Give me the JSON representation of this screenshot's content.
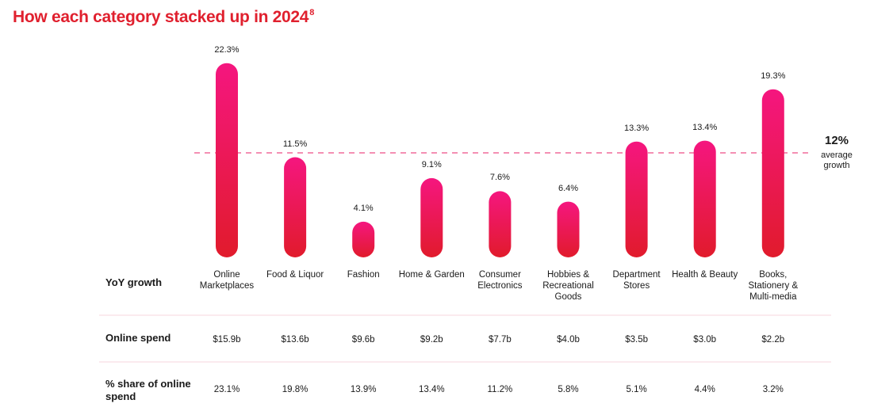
{
  "chart_data": {
    "type": "bar",
    "title": "How each category stacked up in 2024",
    "title_footnote": "8",
    "categories": [
      "Online Marketplaces",
      "Food & Liquor",
      "Fashion",
      "Home & Garden",
      "Consumer Electronics",
      "Hobbies & Recreational Goods",
      "Department Stores",
      "Health & Beauty",
      "Books, Stationery & Multi-media"
    ],
    "values": [
      22.3,
      11.5,
      4.1,
      9.1,
      7.6,
      6.4,
      13.3,
      13.4,
      19.3
    ],
    "value_labels": [
      "22.3%",
      "11.5%",
      "4.1%",
      "9.1%",
      "7.6%",
      "6.4%",
      "13.3%",
      "13.4%",
      "19.3%"
    ],
    "colors": [
      "#f5167f",
      "#e11b2c"
    ],
    "reference_line": {
      "value": 12,
      "label": "12%",
      "caption": "average growth",
      "color": "#f06a9a"
    },
    "row_label": "YoY growth",
    "table_rows": [
      {
        "label": "Online spend",
        "values": [
          "$15.9b",
          "$13.6b",
          "$9.6b",
          "$9.2b",
          "$7.7b",
          "$4.0b",
          "$3.5b",
          "$3.0b",
          "$2.2b"
        ]
      },
      {
        "label": "% share of online spend",
        "values": [
          "23.1%",
          "19.8%",
          "13.9%",
          "13.4%",
          "11.2%",
          "5.8%",
          "5.1%",
          "4.4%",
          "3.2%"
        ]
      }
    ]
  }
}
